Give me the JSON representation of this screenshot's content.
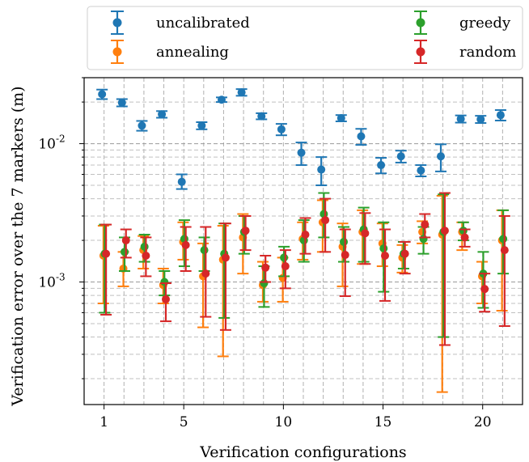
{
  "chart_data": {
    "type": "scatter",
    "title": "",
    "xlabel": "Verification configurations",
    "ylabel": "Verification error over the 7 markers (m)",
    "yscale": "log",
    "xlim": [
      0,
      22
    ],
    "ylim": [
      0.00013,
      0.03
    ],
    "xticks": [
      1,
      5,
      10,
      15,
      20
    ],
    "yticks": [
      0.001,
      0.01
    ],
    "yticklabels": [
      "10^-3",
      "10^-2"
    ],
    "grid": true,
    "legend_position": "top (above plot), 2 columns",
    "x": [
      1,
      2,
      3,
      4,
      5,
      6,
      7,
      8,
      9,
      10,
      11,
      12,
      13,
      14,
      15,
      16,
      17,
      18,
      19,
      20,
      21
    ],
    "series": [
      {
        "name": "uncalibrated",
        "color": "#1f77b4",
        "x_offset": -0.1,
        "mean": [
          0.0228,
          0.0198,
          0.0135,
          0.0163,
          0.0053,
          0.0135,
          0.0208,
          0.0235,
          0.0158,
          0.0127,
          0.0086,
          0.0065,
          0.0153,
          0.0113,
          0.007,
          0.0081,
          0.0064,
          0.0081,
          0.0151,
          0.015,
          0.0161
        ],
        "lower": [
          0.021,
          0.0186,
          0.0124,
          0.0154,
          0.0047,
          0.0127,
          0.02,
          0.0222,
          0.015,
          0.0115,
          0.007,
          0.005,
          0.0145,
          0.0098,
          0.0061,
          0.0073,
          0.0058,
          0.0063,
          0.0142,
          0.0141,
          0.0147
        ],
        "upper": [
          0.0246,
          0.021,
          0.0146,
          0.0172,
          0.006,
          0.0143,
          0.0216,
          0.0248,
          0.0166,
          0.0139,
          0.0102,
          0.008,
          0.0161,
          0.0128,
          0.0079,
          0.0089,
          0.007,
          0.0099,
          0.016,
          0.0159,
          0.0175
        ]
      },
      {
        "name": "annealing",
        "color": "#ff7f0e",
        "x_offset": -0.03,
        "mean": [
          0.00155,
          0.00125,
          0.0017,
          0.00095,
          0.00195,
          0.0011,
          0.00145,
          0.0021,
          0.00095,
          0.00107,
          0.00205,
          0.0027,
          0.0018,
          0.0023,
          0.0019,
          0.0015,
          0.0023,
          0.0022,
          0.0023,
          0.0011,
          0.002
        ],
        "lower": [
          0.0007,
          0.00093,
          0.00125,
          0.0007,
          0.00145,
          0.00047,
          0.00029,
          0.00115,
          0.00072,
          0.00072,
          0.00145,
          0.00165,
          0.00093,
          0.00135,
          0.0013,
          0.00117,
          0.0019,
          0.00016,
          0.0017,
          0.0007,
          0.00062
        ],
        "upper": [
          0.00255,
          0.00165,
          0.00215,
          0.00125,
          0.0027,
          0.0019,
          0.00255,
          0.0031,
          0.0014,
          0.0015,
          0.0027,
          0.0039,
          0.00265,
          0.0033,
          0.00265,
          0.00185,
          0.00275,
          0.0042,
          0.0027,
          0.0014,
          0.0033
        ]
      },
      {
        "name": "greedy",
        "color": "#2ca02c",
        "x_offset": 0.03,
        "mean": [
          0.0016,
          0.00165,
          0.0018,
          0.001,
          0.00205,
          0.0017,
          0.0016,
          0.0023,
          0.00098,
          0.0015,
          0.002,
          0.0031,
          0.00195,
          0.0024,
          0.00175,
          0.0016,
          0.00205,
          0.0023,
          0.00235,
          0.00115,
          0.00205
        ],
        "lower": [
          0.0006,
          0.0012,
          0.0014,
          0.0008,
          0.0013,
          0.0012,
          0.00055,
          0.0016,
          0.00066,
          0.0011,
          0.0014,
          0.0021,
          0.0014,
          0.0014,
          0.00085,
          0.00125,
          0.0016,
          0.0004,
          0.002,
          0.00065,
          0.00115
        ],
        "upper": [
          0.0026,
          0.0021,
          0.0022,
          0.0012,
          0.0028,
          0.0021,
          0.00265,
          0.003,
          0.0013,
          0.0018,
          0.0028,
          0.0044,
          0.0025,
          0.00345,
          0.0027,
          0.00195,
          0.0025,
          0.0043,
          0.0027,
          0.00165,
          0.0033
        ]
      },
      {
        "name": "random",
        "color": "#d62728",
        "x_offset": 0.1,
        "mean": [
          0.0016,
          0.002,
          0.00155,
          0.00075,
          0.00185,
          0.00115,
          0.0015,
          0.00235,
          0.00127,
          0.0013,
          0.0022,
          0.0028,
          0.00157,
          0.00225,
          0.00155,
          0.0016,
          0.0026,
          0.00235,
          0.0021,
          0.00089,
          0.0017
        ],
        "lower": [
          0.00058,
          0.0015,
          0.0011,
          0.00052,
          0.0012,
          0.00056,
          0.00045,
          0.0017,
          0.001,
          0.0009,
          0.0016,
          0.00165,
          0.00079,
          0.00135,
          0.00073,
          0.00115,
          0.0021,
          0.00035,
          0.0018,
          0.00061,
          0.00048
        ],
        "upper": [
          0.0026,
          0.0024,
          0.0021,
          0.00098,
          0.0025,
          0.0025,
          0.00265,
          0.003,
          0.00155,
          0.0017,
          0.0029,
          0.004,
          0.0024,
          0.00315,
          0.0024,
          0.00195,
          0.0031,
          0.0044,
          0.0024,
          0.00115,
          0.003
        ]
      }
    ]
  }
}
